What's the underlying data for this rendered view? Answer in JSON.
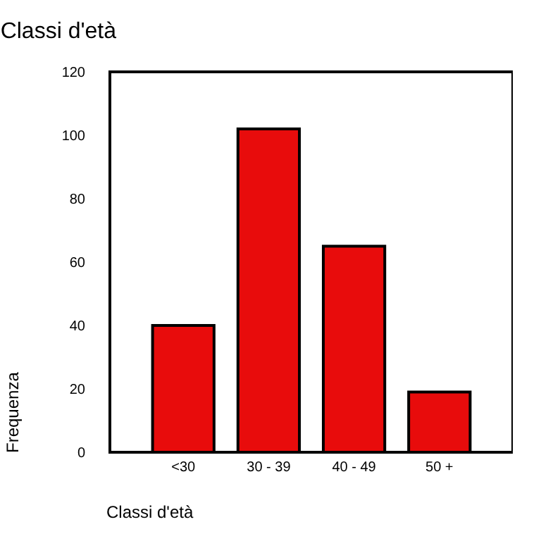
{
  "chart_data": {
    "type": "bar",
    "title": "Classi d'età",
    "xlabel": "Classi d'età",
    "ylabel": "Frequenza",
    "categories": [
      "<30",
      "30 - 39",
      "40 - 49",
      "50 +"
    ],
    "values": [
      40,
      102,
      65,
      19
    ],
    "color": "#e80c0c",
    "ylim": [
      0,
      120
    ],
    "yticks": [
      0,
      20,
      40,
      60,
      80,
      100,
      120
    ],
    "grid": false
  }
}
